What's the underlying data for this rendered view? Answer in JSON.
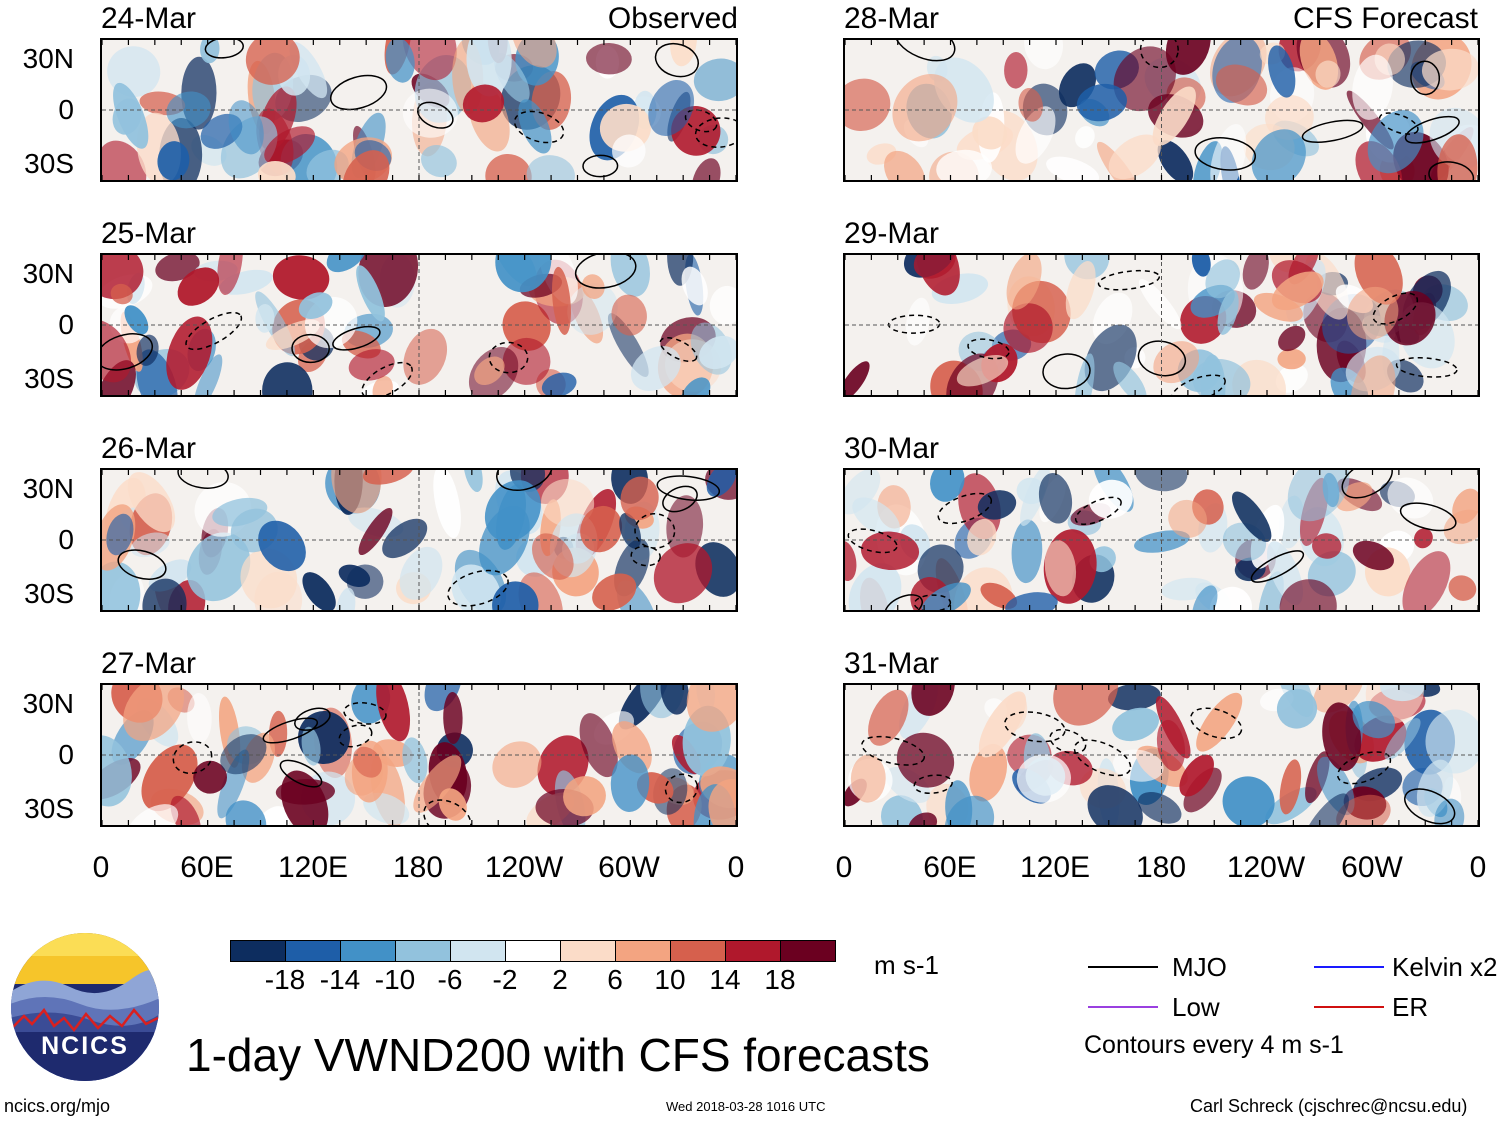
{
  "columns": [
    {
      "header": "Observed",
      "dates": [
        "24-Mar",
        "25-Mar",
        "26-Mar",
        "27-Mar"
      ]
    },
    {
      "header": "CFS Forecast",
      "dates": [
        "28-Mar",
        "29-Mar",
        "30-Mar",
        "31-Mar"
      ]
    }
  ],
  "lat_labels": [
    "30N",
    "0",
    "30S"
  ],
  "lon_labels": [
    "0",
    "60E",
    "120E",
    "180",
    "120W",
    "60W",
    "0"
  ],
  "colorbar": {
    "unit": "m s-1",
    "colors": [
      "#0d2d5f",
      "#1e5ea8",
      "#4291c7",
      "#92c2dd",
      "#d1e5f0",
      "#ffffff",
      "#fbdcc8",
      "#f3a481",
      "#d6604d",
      "#b0182c",
      "#6b0020"
    ],
    "labels": [
      "-18",
      "-14",
      "-10",
      "-6",
      "-2",
      "2",
      "6",
      "10",
      "14",
      "18"
    ]
  },
  "legend": {
    "items": [
      {
        "label": "MJO",
        "color": "#000000"
      },
      {
        "label": "Kelvin x2",
        "color": "#1a1aff"
      },
      {
        "label": "Low",
        "color": "#9a40e0"
      },
      {
        "label": "ER",
        "color": "#d01010"
      }
    ],
    "note": "Contours every 4 m s-1"
  },
  "title": "1-day VWND200 with CFS forecasts",
  "logo_text": "NCICS",
  "footer": {
    "website": "ncics.org/mjo",
    "timestamp": "Wed 2018-03-28 1016 UTC",
    "author": "Carl Schreck (cjschrec@ncsu.edu)"
  }
}
